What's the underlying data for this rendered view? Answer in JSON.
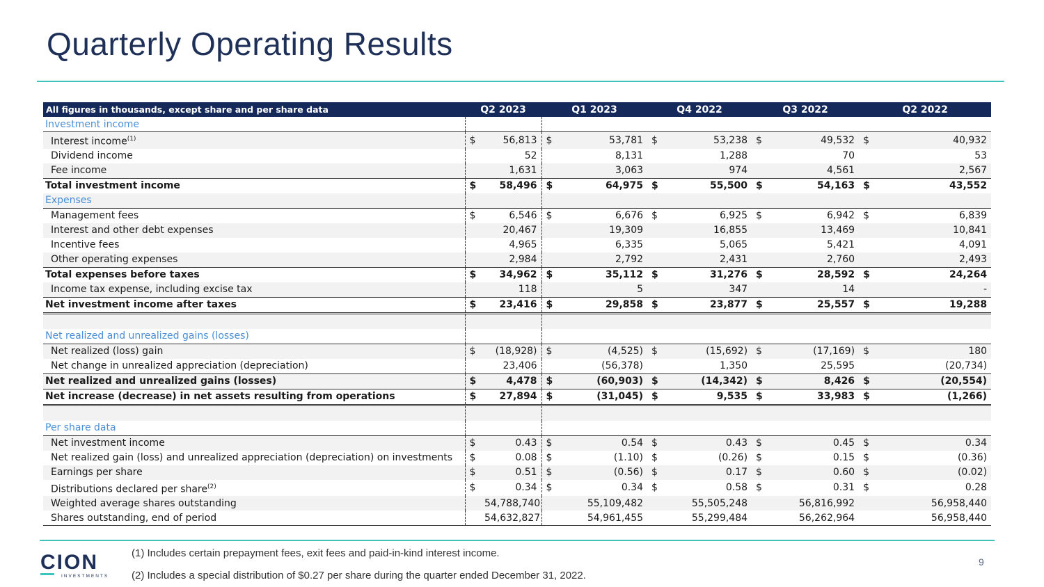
{
  "page": {
    "title": "Quarterly Operating Results",
    "page_number": "9",
    "footnotes": [
      "(1) Includes certain prepayment fees, exit fees and paid-in-kind interest income.",
      "(2) Includes a special distribution of $0.27 per share during the quarter ended December 31, 2022."
    ],
    "logo": {
      "name": "CION",
      "sub": "INVESTMENTS"
    }
  },
  "table": {
    "header_label": "All figures in thousands, except share and per share data",
    "quarters": [
      "Q2 2023",
      "Q1 2023",
      "Q4 2022",
      "Q3 2022",
      "Q2 2022"
    ],
    "rows": [
      {
        "type": "section",
        "label": "Investment income"
      },
      {
        "type": "item",
        "label": "Interest income",
        "sup": "(1)",
        "cur": true,
        "values": [
          "56,813",
          "53,781",
          "53,238",
          "49,532",
          "40,932"
        ],
        "shade": true,
        "btop": true
      },
      {
        "type": "item",
        "label": "Dividend income",
        "cur": false,
        "values": [
          "52",
          "8,131",
          "1,288",
          "70",
          "53"
        ]
      },
      {
        "type": "item",
        "label": "Fee income",
        "cur": false,
        "values": [
          "1,631",
          "3,063",
          "974",
          "4,561",
          "2,567"
        ],
        "shade": true
      },
      {
        "type": "bold",
        "label": "Total investment income",
        "cur": true,
        "values": [
          "58,496",
          "64,975",
          "55,500",
          "54,163",
          "43,552"
        ],
        "btop": true
      },
      {
        "type": "section",
        "label": "Expenses",
        "shade": true
      },
      {
        "type": "item",
        "label": "Management fees",
        "cur": true,
        "values": [
          "6,546",
          "6,676",
          "6,925",
          "6,942",
          "6,839"
        ],
        "btop": true
      },
      {
        "type": "item",
        "label": "Interest and other debt expenses",
        "cur": false,
        "values": [
          "20,467",
          "19,309",
          "16,855",
          "13,469",
          "10,841"
        ],
        "shade": true
      },
      {
        "type": "item",
        "label": "Incentive fees",
        "cur": false,
        "values": [
          "4,965",
          "6,335",
          "5,065",
          "5,421",
          "4,091"
        ]
      },
      {
        "type": "item",
        "label": "Other operating expenses",
        "cur": false,
        "values": [
          "2,984",
          "2,792",
          "2,431",
          "2,760",
          "2,493"
        ],
        "shade": true
      },
      {
        "type": "bold",
        "label": "Total expenses before taxes",
        "cur": true,
        "values": [
          "34,962",
          "35,112",
          "31,276",
          "28,592",
          "24,264"
        ],
        "btop": true
      },
      {
        "type": "item",
        "label": "Income tax expense, including excise tax",
        "cur": false,
        "values": [
          "118",
          "5",
          "347",
          "14",
          "-"
        ],
        "shade": true
      },
      {
        "type": "bold",
        "label": "Net investment income after taxes",
        "cur": true,
        "values": [
          "23,416",
          "29,858",
          "23,877",
          "25,557",
          "19,288"
        ],
        "btop": true,
        "bdbl": true
      },
      {
        "type": "spacer",
        "shade": true
      },
      {
        "type": "section",
        "label": "Net realized and unrealized gains (losses)"
      },
      {
        "type": "item",
        "label": "Net realized (loss) gain",
        "cur": true,
        "values": [
          "(18,928)",
          "(4,525)",
          "(15,692)",
          "(17,169)",
          "180"
        ],
        "shade": true,
        "btop": true
      },
      {
        "type": "item",
        "label": "Net change in unrealized appreciation (depreciation)",
        "cur": false,
        "values": [
          "23,406",
          "(56,378)",
          "1,350",
          "25,595",
          "(20,734)"
        ]
      },
      {
        "type": "bold",
        "label": "Net realized and unrealized gains (losses)",
        "cur": true,
        "values": [
          "4,478",
          "(60,903)",
          "(14,342)",
          "8,426",
          "(20,554)"
        ],
        "shade": true,
        "btop": true,
        "bbot": true
      },
      {
        "type": "bold",
        "label": "Net increase (decrease) in net assets resulting from operations",
        "cur": true,
        "values": [
          "27,894",
          "(31,045)",
          "9,535",
          "33,983",
          "(1,266)"
        ],
        "bdbl": true
      },
      {
        "type": "spacer",
        "shade": true
      },
      {
        "type": "section",
        "label": "Per share data"
      },
      {
        "type": "item",
        "label": "Net investment income",
        "cur": true,
        "values": [
          "0.43",
          "0.54",
          "0.43",
          "0.45",
          "0.34"
        ],
        "shade": true,
        "btop": true
      },
      {
        "type": "item",
        "label": "Net realized gain (loss) and unrealized appreciation (depreciation) on investments",
        "cur": true,
        "values": [
          "0.08",
          "(1.10)",
          "(0.26)",
          "0.15",
          "(0.36)"
        ]
      },
      {
        "type": "item",
        "label": "Earnings per share",
        "cur": true,
        "values": [
          "0.51",
          "(0.56)",
          "0.17",
          "0.60",
          "(0.02)"
        ],
        "shade": true
      },
      {
        "type": "item",
        "label": "Distributions declared per share",
        "sup": "(2)",
        "cur": true,
        "values": [
          "0.34",
          "0.34",
          "0.58",
          "0.31",
          "0.28"
        ]
      },
      {
        "type": "item",
        "label": "Weighted average shares outstanding",
        "cur": false,
        "values": [
          "54,788,740",
          "55,109,482",
          "55,505,248",
          "56,816,992",
          "56,958,440"
        ],
        "shade": true
      },
      {
        "type": "item",
        "label": "Shares outstanding, end of period",
        "cur": false,
        "values": [
          "54,632,827",
          "54,961,455",
          "55,299,484",
          "56,262,964",
          "56,958,440"
        ],
        "bbot": true
      }
    ]
  }
}
